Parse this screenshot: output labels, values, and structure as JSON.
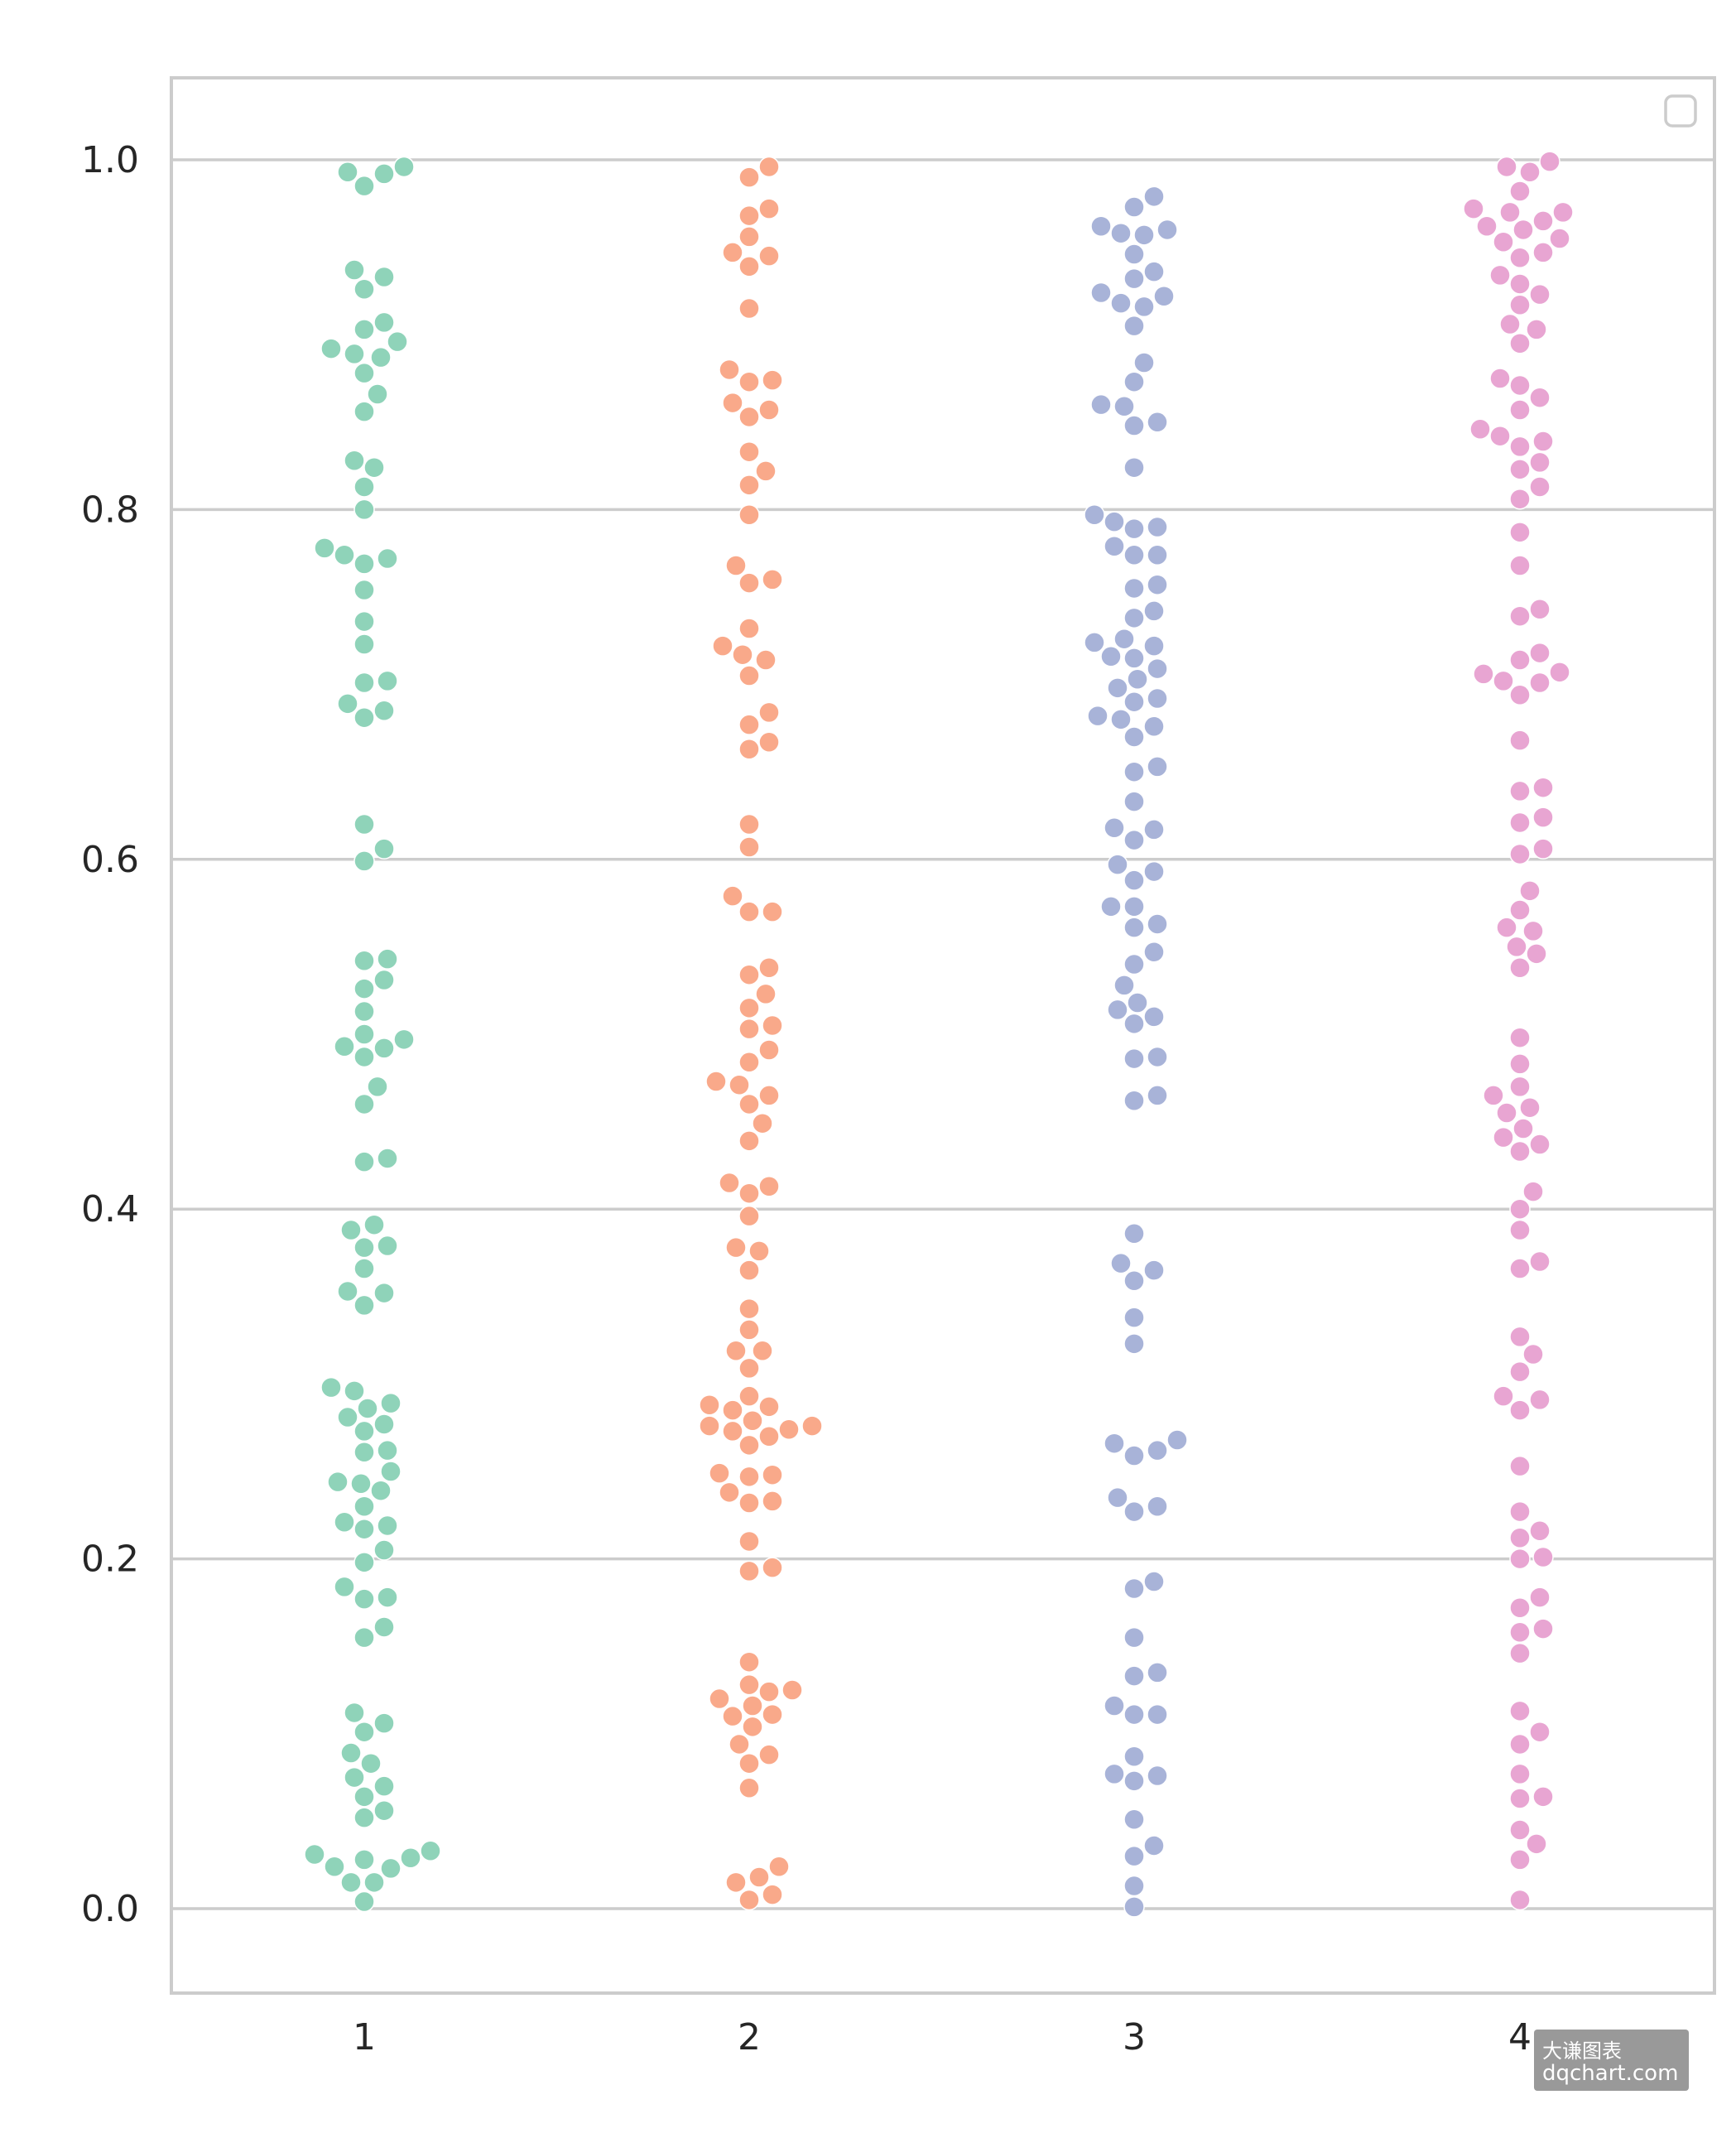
{
  "chart_data": {
    "type": "scatter",
    "subtype": "swarm",
    "title": "",
    "xlabel": "",
    "ylabel": "",
    "categories": [
      "1",
      "2",
      "3",
      "4"
    ],
    "ylim": [
      -0.05,
      1.05
    ],
    "yticks": [
      "0.0",
      "0.2",
      "0.4",
      "0.6",
      "0.8",
      "1.0"
    ],
    "grid": true,
    "legend": "top-right (empty)",
    "colors": [
      "#8fd3b9",
      "#f9a98a",
      "#a8b3d8",
      "#e8a5d2"
    ],
    "series": [
      {
        "category": "1",
        "values": [
          0.996,
          0.993,
          0.992,
          0.985,
          0.937,
          0.933,
          0.926,
          0.907,
          0.903,
          0.896,
          0.892,
          0.889,
          0.887,
          0.878,
          0.866,
          0.856,
          0.828,
          0.824,
          0.813,
          0.8,
          0.778,
          0.774,
          0.772,
          0.769,
          0.754,
          0.736,
          0.723,
          0.702,
          0.701,
          0.689,
          0.685,
          0.681,
          0.62,
          0.606,
          0.599,
          0.543,
          0.542,
          0.531,
          0.526,
          0.513,
          0.5,
          0.497,
          0.493,
          0.492,
          0.487,
          0.47,
          0.46,
          0.429,
          0.427,
          0.391,
          0.388,
          0.379,
          0.378,
          0.366,
          0.353,
          0.352,
          0.345,
          0.298,
          0.296,
          0.289,
          0.286,
          0.281,
          0.277,
          0.273,
          0.262,
          0.261,
          0.25,
          0.244,
          0.243,
          0.239,
          0.23,
          0.221,
          0.219,
          0.217,
          0.205,
          0.198,
          0.184,
          0.178,
          0.177,
          0.161,
          0.155,
          0.112,
          0.106,
          0.101,
          0.089,
          0.083,
          0.075,
          0.07,
          0.064,
          0.056,
          0.052,
          0.033,
          0.031,
          0.029,
          0.028,
          0.024,
          0.023,
          0.015,
          0.015,
          0.004
        ]
      },
      {
        "category": "2",
        "values": [
          0.996,
          0.99,
          0.972,
          0.968,
          0.956,
          0.947,
          0.945,
          0.939,
          0.915,
          0.88,
          0.874,
          0.873,
          0.861,
          0.857,
          0.853,
          0.833,
          0.822,
          0.814,
          0.797,
          0.768,
          0.76,
          0.758,
          0.732,
          0.722,
          0.717,
          0.714,
          0.705,
          0.684,
          0.677,
          0.667,
          0.663,
          0.62,
          0.607,
          0.579,
          0.57,
          0.57,
          0.538,
          0.534,
          0.523,
          0.515,
          0.505,
          0.503,
          0.491,
          0.484,
          0.473,
          0.471,
          0.465,
          0.46,
          0.449,
          0.439,
          0.415,
          0.413,
          0.409,
          0.396,
          0.378,
          0.376,
          0.365,
          0.343,
          0.331,
          0.319,
          0.319,
          0.309,
          0.293,
          0.288,
          0.287,
          0.285,
          0.279,
          0.276,
          0.276,
          0.274,
          0.273,
          0.27,
          0.265,
          0.249,
          0.248,
          0.247,
          0.238,
          0.233,
          0.232,
          0.21,
          0.195,
          0.193,
          0.141,
          0.128,
          0.125,
          0.124,
          0.12,
          0.116,
          0.111,
          0.11,
          0.104,
          0.094,
          0.088,
          0.083,
          0.069,
          0.024,
          0.018,
          0.015,
          0.008,
          0.005
        ]
      },
      {
        "category": "3",
        "values": [
          0.979,
          0.973,
          0.962,
          0.96,
          0.958,
          0.957,
          0.946,
          0.936,
          0.932,
          0.924,
          0.922,
          0.918,
          0.916,
          0.905,
          0.884,
          0.873,
          0.86,
          0.859,
          0.85,
          0.848,
          0.824,
          0.797,
          0.793,
          0.79,
          0.789,
          0.779,
          0.774,
          0.774,
          0.757,
          0.755,
          0.742,
          0.738,
          0.726,
          0.724,
          0.722,
          0.716,
          0.715,
          0.709,
          0.703,
          0.698,
          0.692,
          0.69,
          0.682,
          0.68,
          0.676,
          0.67,
          0.653,
          0.65,
          0.633,
          0.618,
          0.617,
          0.611,
          0.597,
          0.593,
          0.588,
          0.573,
          0.573,
          0.563,
          0.561,
          0.547,
          0.54,
          0.528,
          0.518,
          0.514,
          0.51,
          0.506,
          0.487,
          0.486,
          0.465,
          0.462,
          0.386,
          0.369,
          0.365,
          0.359,
          0.338,
          0.323,
          0.268,
          0.266,
          0.262,
          0.259,
          0.235,
          0.23,
          0.227,
          0.187,
          0.183,
          0.155,
          0.135,
          0.133,
          0.116,
          0.111,
          0.111,
          0.087,
          0.077,
          0.076,
          0.073,
          0.051,
          0.036,
          0.03,
          0.013,
          0.001
        ]
      },
      {
        "category": "4",
        "values": [
          0.999,
          0.996,
          0.993,
          0.982,
          0.972,
          0.97,
          0.97,
          0.965,
          0.962,
          0.96,
          0.955,
          0.953,
          0.947,
          0.944,
          0.934,
          0.929,
          0.923,
          0.917,
          0.906,
          0.903,
          0.895,
          0.875,
          0.871,
          0.864,
          0.857,
          0.846,
          0.842,
          0.839,
          0.836,
          0.827,
          0.823,
          0.813,
          0.806,
          0.787,
          0.768,
          0.743,
          0.739,
          0.718,
          0.714,
          0.707,
          0.706,
          0.702,
          0.701,
          0.694,
          0.668,
          0.641,
          0.639,
          0.624,
          0.621,
          0.606,
          0.603,
          0.582,
          0.571,
          0.561,
          0.559,
          0.55,
          0.546,
          0.538,
          0.498,
          0.483,
          0.47,
          0.465,
          0.458,
          0.455,
          0.446,
          0.441,
          0.437,
          0.433,
          0.41,
          0.4,
          0.388,
          0.37,
          0.366,
          0.327,
          0.317,
          0.307,
          0.293,
          0.291,
          0.285,
          0.253,
          0.227,
          0.216,
          0.212,
          0.201,
          0.2,
          0.178,
          0.172,
          0.16,
          0.158,
          0.146,
          0.113,
          0.101,
          0.094,
          0.077,
          0.064,
          0.063,
          0.045,
          0.037,
          0.028,
          0.005
        ]
      }
    ]
  },
  "watermark": {
    "line1": "大谦图表",
    "line2": "dqchart.com"
  }
}
